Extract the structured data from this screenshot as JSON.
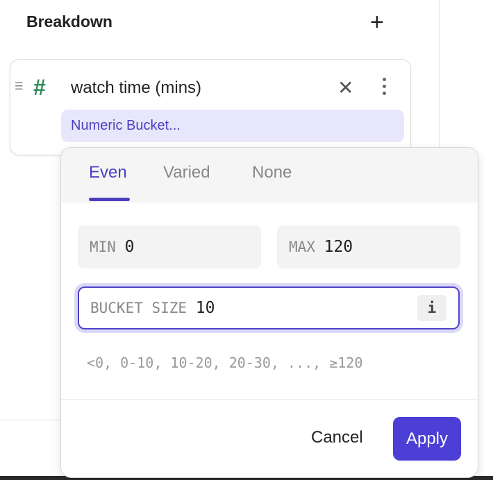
{
  "section": {
    "title": "Breakdown",
    "add_icon": "plus-icon"
  },
  "field": {
    "drag_icon": "drag-handle-icon",
    "type_icon": "hash-icon",
    "title": "watch time (mins)",
    "remove_icon": "close-icon",
    "menu_icon": "more-vertical-icon",
    "bucket_chip": "Numeric Bucket..."
  },
  "popover": {
    "tabs": [
      {
        "label": "Even",
        "active": true
      },
      {
        "label": "Varied",
        "active": false
      },
      {
        "label": "None",
        "active": false
      }
    ],
    "min": {
      "label": "MIN",
      "value": "0"
    },
    "max": {
      "label": "MAX",
      "value": "120"
    },
    "bucket_size": {
      "label": "BUCKET SIZE",
      "value": "10",
      "info_icon": "i"
    },
    "preview": "<0, 0-10, 10-20, 20-30, ..., ≥120",
    "cancel_label": "Cancel",
    "apply_label": "Apply"
  },
  "colors": {
    "accent": "#4b3fd6",
    "chip_bg": "#e8e6fb",
    "hash": "#2e8a5a"
  }
}
